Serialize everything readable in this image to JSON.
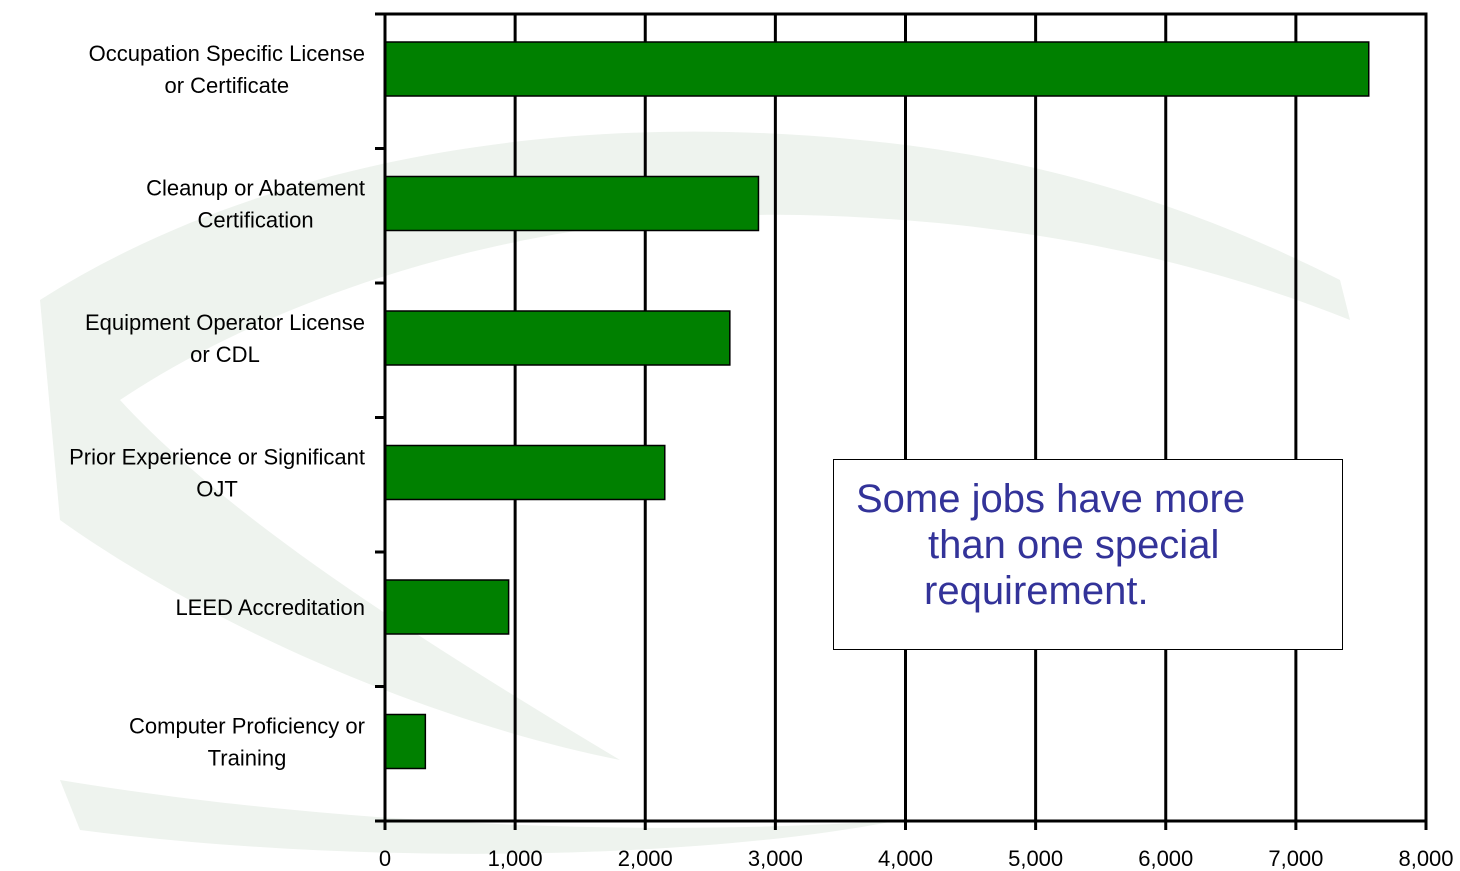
{
  "colors": {
    "bar_fill": "#008000",
    "annotation_text": "#333399",
    "background_swoosh": "#eef3ee"
  },
  "annotation": {
    "lines": [
      "Some jobs have more",
      "than one special",
      "requirement."
    ]
  },
  "chart_data": {
    "type": "bar",
    "orientation": "horizontal",
    "title": "",
    "xlabel": "",
    "ylabel": "",
    "grid": true,
    "legend": "none",
    "xlim": [
      0,
      8000
    ],
    "x_ticks": [
      0,
      1000,
      2000,
      3000,
      4000,
      5000,
      6000,
      7000,
      8000
    ],
    "x_tick_labels": [
      "0",
      "1,000",
      "2,000",
      "3,000",
      "4,000",
      "5,000",
      "6,000",
      "7,000",
      "8,000"
    ],
    "categories": [
      [
        "Occupation Specific License",
        "or Certificate"
      ],
      [
        "Cleanup or Abatement",
        "Certification"
      ],
      [
        "Equipment Operator License",
        "or CDL"
      ],
      [
        "Prior Experience or Significant",
        "OJT"
      ],
      [
        "LEED Accreditation"
      ],
      [
        "Computer Proficiency or",
        "Training"
      ]
    ],
    "values": [
      7560,
      2870,
      2650,
      2150,
      950,
      310
    ]
  }
}
